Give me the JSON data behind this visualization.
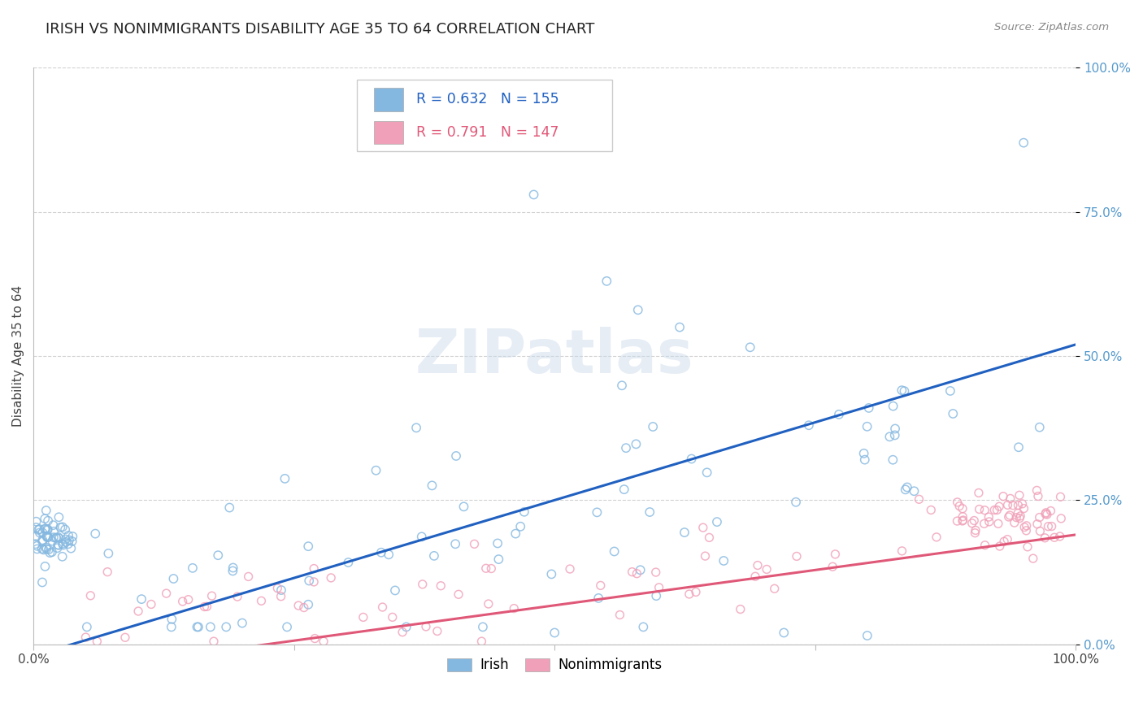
{
  "title": "IRISH VS NONIMMIGRANTS DISABILITY AGE 35 TO 64 CORRELATION CHART",
  "source": "Source: ZipAtlas.com",
  "ylabel": "Disability Age 35 to 64",
  "irish_color": "#85b8e0",
  "nonimm_color": "#f0a0b8",
  "irish_line_color": "#2060c0",
  "nonimm_line_color": "#e05878",
  "background_color": "#ffffff",
  "grid_color": "#cccccc",
  "ytick_labels": [
    "0.0%",
    "25.0%",
    "50.0%",
    "75.0%",
    "100.0%"
  ],
  "ytick_values": [
    0,
    0.25,
    0.5,
    0.75,
    1.0
  ],
  "xlim": [
    0,
    1.0
  ],
  "ylim": [
    0,
    1.0
  ],
  "watermark": "ZIPatlas",
  "title_fontsize": 13,
  "axis_label_fontsize": 11,
  "irish_R": "0.632",
  "irish_N": "155",
  "nonimm_R": "0.791",
  "nonimm_N": "147"
}
